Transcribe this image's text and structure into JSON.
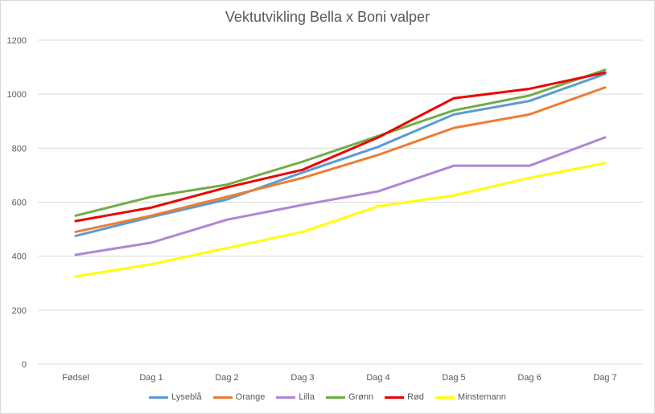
{
  "chart_data": {
    "type": "line",
    "title": "Vektutvikling Bella x Boni valper",
    "xlabel": "",
    "ylabel": "",
    "categories": [
      "Fødsel",
      "Dag 1",
      "Dag 2",
      "Dag 3",
      "Dag 4",
      "Dag 5",
      "Dag 6",
      "Dag 7"
    ],
    "ylim": [
      0,
      1200
    ],
    "yticks": [
      0,
      200,
      400,
      600,
      800,
      1000,
      1200
    ],
    "grid": true,
    "legend_position": "bottom",
    "series": [
      {
        "name": "Lyseblå",
        "color": "#5b9bd5",
        "values": [
          475,
          545,
          610,
          710,
          805,
          925,
          975,
          1075
        ]
      },
      {
        "name": "Orange",
        "color": "#ed7d31",
        "values": [
          490,
          550,
          620,
          690,
          775,
          875,
          925,
          1025
        ]
      },
      {
        "name": "Lilla",
        "color": "#b185d6",
        "values": [
          405,
          450,
          535,
          590,
          640,
          735,
          735,
          840
        ]
      },
      {
        "name": "Grønn",
        "color": "#70ad47",
        "values": [
          550,
          620,
          665,
          750,
          845,
          940,
          995,
          1090
        ]
      },
      {
        "name": "Rød",
        "color": "#ee0000",
        "values": [
          530,
          580,
          655,
          720,
          840,
          985,
          1020,
          1080
        ]
      },
      {
        "name": "Minstemann",
        "color": "#ffff00",
        "values": [
          325,
          370,
          430,
          490,
          585,
          625,
          690,
          745
        ]
      }
    ]
  }
}
